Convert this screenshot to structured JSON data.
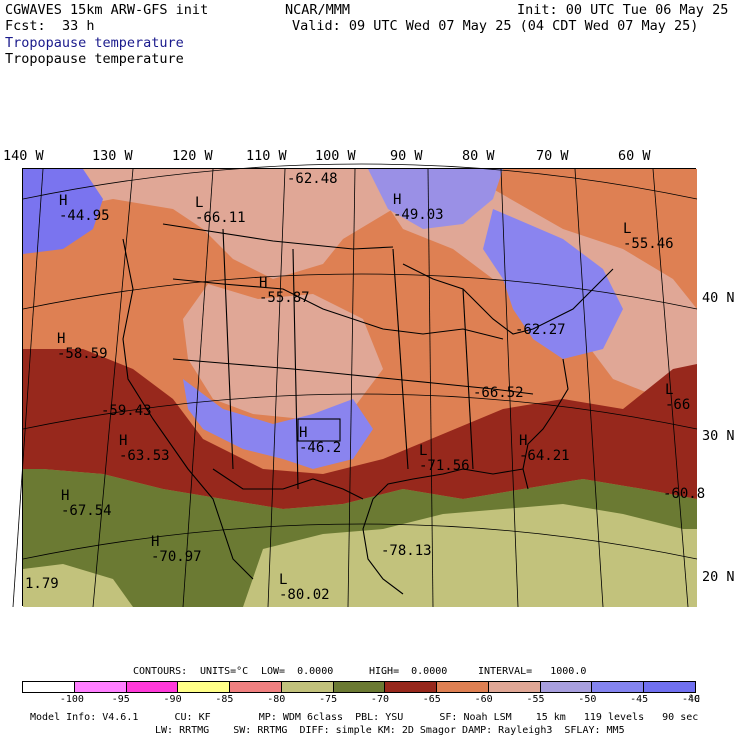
{
  "header": {
    "model": "CGWAVES 15km ARW-GFS init",
    "fcst_label": "Fcst:",
    "fcst_value": "33 h",
    "field_blue": "Tropopause temperature",
    "field_black": "Tropopause temperature",
    "org": "NCAR/MMM",
    "init": "Init: 00 UTC Tue 06 May 25",
    "valid": "Valid: 09 UTC Wed 07 May 25 (04 CDT Wed 07 May 25)"
  },
  "lon_labels": [
    "140 W",
    "130 W",
    "120 W",
    "110 W",
    "100 W",
    "90 W",
    "80 W",
    "70 W",
    "60 W"
  ],
  "lat_labels": [
    "40 N",
    "30 N",
    "20 N"
  ],
  "centers": [
    {
      "type": "H",
      "value": "-44.95"
    },
    {
      "type": "L",
      "value": "-66.11"
    },
    {
      "type": "",
      "value": "-62.48"
    },
    {
      "type": "H",
      "value": "-49.03"
    },
    {
      "type": "L",
      "value": "-55.46"
    },
    {
      "type": "H",
      "value": "-55.87"
    },
    {
      "type": "H",
      "value": "-58.59"
    },
    {
      "type": "",
      "value": "-62.27"
    },
    {
      "type": "",
      "value": "-66.52"
    },
    {
      "type": "L",
      "value": "-66"
    },
    {
      "type": "",
      "value": "-59.43"
    },
    {
      "type": "H",
      "value": "-63.53"
    },
    {
      "type": "H",
      "value": "-46.2"
    },
    {
      "type": "L",
      "value": "-71.56"
    },
    {
      "type": "H",
      "value": "-64.21"
    },
    {
      "type": "H",
      "value": "-67.54"
    },
    {
      "type": "",
      "value": "-60.8"
    },
    {
      "type": "H",
      "value": "-70.97"
    },
    {
      "type": "",
      "value": "-78.13"
    },
    {
      "type": "",
      "value": "1.79"
    },
    {
      "type": "L",
      "value": "-80.02"
    }
  ],
  "contours": {
    "label": "CONTOURS:",
    "units": "UNITS=°C",
    "low": "LOW=  0.0000",
    "high": "HIGH=  0.0000",
    "interval": "INTERVAL=   1000.0"
  },
  "colorbar": {
    "colors": [
      "#ffffff",
      "#ff7fff",
      "#ff3ad9",
      "#ffff88",
      "#f08080",
      "#c2c27c",
      "#6b7a33",
      "#97281c",
      "#de8053",
      "#e0a796",
      "#a89fde",
      "#8484f0",
      "#7070f0"
    ],
    "ticks": [
      "-100",
      "-95",
      "-90",
      "-85",
      "-80",
      "-75",
      "-70",
      "-65",
      "-60",
      "-55",
      "-50",
      "-45",
      "-40"
    ],
    "unit": "°C"
  },
  "footer": {
    "line1": "Model Info: V4.6.1      CU: KF        MP: WDM 6class  PBL: YSU      SF: Noah LSM    15 km   119 levels   90 sec",
    "line2": "LW: RRTMG    SW: RRTMG  DIFF: simple KM: 2D Smagor DAMP: Rayleigh3  SFLAY: MM5"
  }
}
